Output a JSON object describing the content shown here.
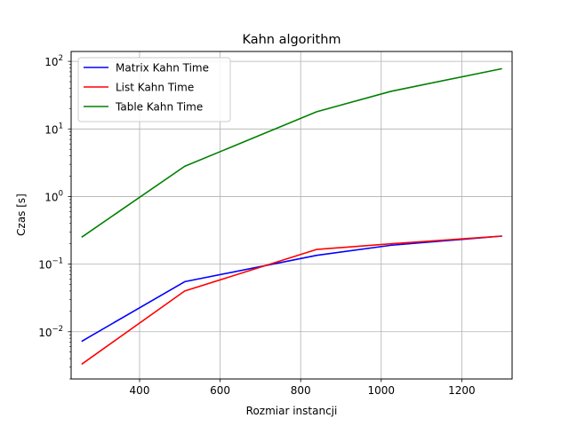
{
  "chart_data": {
    "type": "line",
    "title": "Kahn algorithm",
    "xlabel": "Rozmiar instancji",
    "ylabel": "Czas [s]",
    "xlim": [
      230,
      1325
    ],
    "ylim": [
      0.002,
      140
    ],
    "yscale": "log",
    "grid": true,
    "legend_position": "top-left",
    "x_ticks": [
      400,
      600,
      800,
      1000,
      1200
    ],
    "y_ticks": [
      {
        "value": 0.01,
        "mantissa": "10",
        "exponent": "−2"
      },
      {
        "value": 0.1,
        "mantissa": "10",
        "exponent": "−1"
      },
      {
        "value": 1,
        "mantissa": "10",
        "exponent": "0"
      },
      {
        "value": 10,
        "mantissa": "10",
        "exponent": "1"
      },
      {
        "value": 100,
        "mantissa": "10",
        "exponent": "2"
      }
    ],
    "series": [
      {
        "name": "Matrix Kahn Time",
        "color": "#0000ff",
        "x": [
          256,
          512,
          840,
          1024,
          1300
        ],
        "y": [
          0.0072,
          0.055,
          0.135,
          0.19,
          0.26
        ]
      },
      {
        "name": "List Kahn Time",
        "color": "#ff0000",
        "x": [
          256,
          512,
          840,
          1024,
          1300
        ],
        "y": [
          0.0033,
          0.04,
          0.165,
          0.2,
          0.26
        ]
      },
      {
        "name": "Table Kahn Time",
        "color": "#008000",
        "x": [
          256,
          512,
          840,
          1024,
          1300
        ],
        "y": [
          0.25,
          2.8,
          18,
          36,
          78
        ]
      }
    ]
  }
}
